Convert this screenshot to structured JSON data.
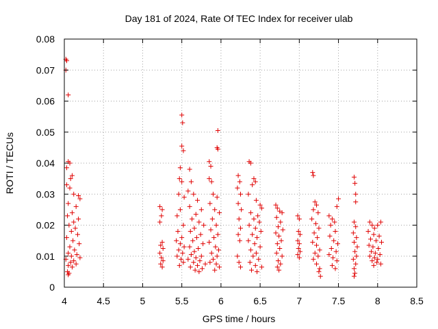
{
  "chart_data": {
    "type": "scatter",
    "title": "Day 181 of 2024, Rate Of TEC Index for receiver ulab",
    "xlabel": "GPS time / hours",
    "ylabel": "ROTI / TECUs",
    "xlim": [
      4,
      8.5
    ],
    "ylim": [
      0,
      0.08
    ],
    "x_ticks": [
      "4",
      "4.5",
      "5",
      "5.5",
      "6",
      "6.5",
      "7",
      "7.5",
      "8",
      "8.5"
    ],
    "y_ticks": [
      "0",
      "0.01",
      "0.02",
      "0.03",
      "0.04",
      "0.05",
      "0.06",
      "0.07",
      "0.08"
    ],
    "grid": true,
    "marker": "+",
    "color": "#e00000",
    "series": [
      {
        "name": "ROTI",
        "points": [
          [
            4.02,
            0.0735
          ],
          [
            4.03,
            0.073
          ],
          [
            4.02,
            0.07
          ],
          [
            4.05,
            0.062
          ],
          [
            4.05,
            0.0405
          ],
          [
            4.07,
            0.04
          ],
          [
            4.03,
            0.0385
          ],
          [
            4.1,
            0.036
          ],
          [
            4.08,
            0.035
          ],
          [
            4.03,
            0.033
          ],
          [
            4.07,
            0.032
          ],
          [
            4.12,
            0.03
          ],
          [
            4.18,
            0.0295
          ],
          [
            4.2,
            0.0285
          ],
          [
            4.05,
            0.027
          ],
          [
            4.15,
            0.026
          ],
          [
            4.1,
            0.024
          ],
          [
            4.04,
            0.023
          ],
          [
            4.18,
            0.022
          ],
          [
            4.12,
            0.021
          ],
          [
            4.06,
            0.02
          ],
          [
            4.14,
            0.019
          ],
          [
            4.09,
            0.018
          ],
          [
            4.17,
            0.017
          ],
          [
            4.03,
            0.016
          ],
          [
            4.11,
            0.015
          ],
          [
            4.19,
            0.014
          ],
          [
            4.07,
            0.013
          ],
          [
            4.13,
            0.012
          ],
          [
            4.05,
            0.011
          ],
          [
            4.16,
            0.0105
          ],
          [
            4.09,
            0.01
          ],
          [
            4.2,
            0.0095
          ],
          [
            4.02,
            0.009
          ],
          [
            4.12,
            0.0085
          ],
          [
            4.08,
            0.008
          ],
          [
            4.15,
            0.0075
          ],
          [
            4.05,
            0.007
          ],
          [
            4.1,
            0.0065
          ],
          [
            4.04,
            0.005
          ],
          [
            4.06,
            0.0045
          ],
          [
            4.05,
            0.004
          ],
          [
            5.22,
            0.026
          ],
          [
            5.25,
            0.025
          ],
          [
            5.24,
            0.023
          ],
          [
            5.22,
            0.021
          ],
          [
            5.25,
            0.0145
          ],
          [
            5.23,
            0.0135
          ],
          [
            5.26,
            0.0125
          ],
          [
            5.22,
            0.011
          ],
          [
            5.24,
            0.0095
          ],
          [
            5.26,
            0.0085
          ],
          [
            5.23,
            0.0075
          ],
          [
            5.25,
            0.0065
          ],
          [
            5.5,
            0.0555
          ],
          [
            5.51,
            0.053
          ],
          [
            5.5,
            0.0455
          ],
          [
            5.52,
            0.044
          ],
          [
            5.48,
            0.0385
          ],
          [
            5.47,
            0.035
          ],
          [
            5.5,
            0.034
          ],
          [
            5.46,
            0.03
          ],
          [
            5.53,
            0.029
          ],
          [
            5.48,
            0.025
          ],
          [
            5.44,
            0.023
          ],
          [
            5.52,
            0.02
          ],
          [
            5.45,
            0.018
          ],
          [
            5.5,
            0.016
          ],
          [
            5.43,
            0.015
          ],
          [
            5.48,
            0.014
          ],
          [
            5.53,
            0.013
          ],
          [
            5.46,
            0.012
          ],
          [
            5.51,
            0.011
          ],
          [
            5.44,
            0.01
          ],
          [
            5.49,
            0.009
          ],
          [
            5.52,
            0.008
          ],
          [
            5.47,
            0.007
          ],
          [
            5.6,
            0.038
          ],
          [
            5.62,
            0.034
          ],
          [
            5.58,
            0.031
          ],
          [
            5.65,
            0.03
          ],
          [
            5.7,
            0.028
          ],
          [
            5.6,
            0.026
          ],
          [
            5.75,
            0.025
          ],
          [
            5.68,
            0.0235
          ],
          [
            5.63,
            0.022
          ],
          [
            5.72,
            0.021
          ],
          [
            5.78,
            0.02
          ],
          [
            5.66,
            0.019
          ],
          [
            5.61,
            0.018
          ],
          [
            5.74,
            0.017
          ],
          [
            5.69,
            0.016
          ],
          [
            5.64,
            0.015
          ],
          [
            5.77,
            0.014
          ],
          [
            5.6,
            0.013
          ],
          [
            5.71,
            0.0125
          ],
          [
            5.66,
            0.0115
          ],
          [
            5.62,
            0.0105
          ],
          [
            5.75,
            0.01
          ],
          [
            5.68,
            0.0095
          ],
          [
            5.58,
            0.009
          ],
          [
            5.73,
            0.0085
          ],
          [
            5.65,
            0.008
          ],
          [
            5.8,
            0.0075
          ],
          [
            5.7,
            0.007
          ],
          [
            5.61,
            0.0065
          ],
          [
            5.76,
            0.006
          ],
          [
            5.67,
            0.0055
          ],
          [
            5.72,
            0.005
          ],
          [
            5.85,
            0.0405
          ],
          [
            5.87,
            0.039
          ],
          [
            5.85,
            0.035
          ],
          [
            5.88,
            0.034
          ],
          [
            5.9,
            0.03
          ],
          [
            5.95,
            0.029
          ],
          [
            5.86,
            0.027
          ],
          [
            5.92,
            0.025
          ],
          [
            5.98,
            0.024
          ],
          [
            5.89,
            0.022
          ],
          [
            5.94,
            0.02
          ],
          [
            5.87,
            0.0185
          ],
          [
            5.96,
            0.017
          ],
          [
            5.91,
            0.016
          ],
          [
            5.85,
            0.0145
          ],
          [
            5.93,
            0.013
          ],
          [
            5.97,
            0.012
          ],
          [
            5.88,
            0.011
          ],
          [
            5.95,
            0.01
          ],
          [
            5.9,
            0.009
          ],
          [
            5.86,
            0.008
          ],
          [
            5.94,
            0.0075
          ],
          [
            5.98,
            0.0065
          ],
          [
            5.92,
            0.0055
          ],
          [
            5.96,
            0.0505
          ],
          [
            5.95,
            0.045
          ],
          [
            5.96,
            0.0445
          ],
          [
            6.22,
            0.036
          ],
          [
            6.24,
            0.034
          ],
          [
            6.21,
            0.032
          ],
          [
            6.25,
            0.03
          ],
          [
            6.22,
            0.027
          ],
          [
            6.26,
            0.025
          ],
          [
            6.23,
            0.022
          ],
          [
            6.25,
            0.019
          ],
          [
            6.22,
            0.017
          ],
          [
            6.24,
            0.015
          ],
          [
            6.21,
            0.01
          ],
          [
            6.23,
            0.008
          ],
          [
            6.25,
            0.0065
          ],
          [
            6.36,
            0.0405
          ],
          [
            6.38,
            0.04
          ],
          [
            6.42,
            0.035
          ],
          [
            6.44,
            0.034
          ],
          [
            6.4,
            0.033
          ],
          [
            6.35,
            0.03
          ],
          [
            6.45,
            0.028
          ],
          [
            6.5,
            0.0265
          ],
          [
            6.52,
            0.0255
          ],
          [
            6.38,
            0.024
          ],
          [
            6.47,
            0.023
          ],
          [
            6.42,
            0.022
          ],
          [
            6.49,
            0.021
          ],
          [
            6.36,
            0.02
          ],
          [
            6.44,
            0.019
          ],
          [
            6.51,
            0.018
          ],
          [
            6.4,
            0.017
          ],
          [
            6.46,
            0.016
          ],
          [
            6.35,
            0.015
          ],
          [
            6.43,
            0.014
          ],
          [
            6.5,
            0.013
          ],
          [
            6.38,
            0.012
          ],
          [
            6.45,
            0.011
          ],
          [
            6.41,
            0.01
          ],
          [
            6.48,
            0.009
          ],
          [
            6.37,
            0.008
          ],
          [
            6.44,
            0.007
          ],
          [
            6.52,
            0.0065
          ],
          [
            6.39,
            0.0055
          ],
          [
            6.46,
            0.005
          ],
          [
            6.7,
            0.0265
          ],
          [
            6.72,
            0.0255
          ],
          [
            6.75,
            0.0245
          ],
          [
            6.78,
            0.024
          ],
          [
            6.71,
            0.0225
          ],
          [
            6.76,
            0.021
          ],
          [
            6.73,
            0.0195
          ],
          [
            6.79,
            0.0185
          ],
          [
            6.7,
            0.0175
          ],
          [
            6.74,
            0.0165
          ],
          [
            6.77,
            0.015
          ],
          [
            6.72,
            0.014
          ],
          [
            6.75,
            0.0125
          ],
          [
            6.71,
            0.011
          ],
          [
            6.78,
            0.01
          ],
          [
            6.73,
            0.0085
          ],
          [
            6.76,
            0.0075
          ],
          [
            6.72,
            0.0065
          ],
          [
            6.74,
            0.0055
          ],
          [
            6.98,
            0.023
          ],
          [
            7.0,
            0.022
          ],
          [
            6.99,
            0.018
          ],
          [
            7.01,
            0.017
          ],
          [
            6.98,
            0.015
          ],
          [
            7.0,
            0.014
          ],
          [
            6.99,
            0.0125
          ],
          [
            7.01,
            0.0115
          ],
          [
            6.98,
            0.0105
          ],
          [
            7.0,
            0.0095
          ],
          [
            7.17,
            0.037
          ],
          [
            7.18,
            0.036
          ],
          [
            7.2,
            0.0275
          ],
          [
            7.22,
            0.0265
          ],
          [
            7.18,
            0.025
          ],
          [
            7.24,
            0.024
          ],
          [
            7.16,
            0.022
          ],
          [
            7.21,
            0.0205
          ],
          [
            7.25,
            0.019
          ],
          [
            7.19,
            0.0175
          ],
          [
            7.23,
            0.016
          ],
          [
            7.17,
            0.0145
          ],
          [
            7.22,
            0.0135
          ],
          [
            7.26,
            0.012
          ],
          [
            7.2,
            0.011
          ],
          [
            7.24,
            0.01
          ],
          [
            7.18,
            0.009
          ],
          [
            7.22,
            0.0075
          ],
          [
            7.26,
            0.006
          ],
          [
            7.25,
            0.005
          ],
          [
            7.27,
            0.0035
          ],
          [
            7.38,
            0.023
          ],
          [
            7.42,
            0.022
          ],
          [
            7.45,
            0.021
          ],
          [
            7.5,
            0.0285
          ],
          [
            7.48,
            0.026
          ],
          [
            7.4,
            0.02
          ],
          [
            7.46,
            0.018
          ],
          [
            7.39,
            0.0165
          ],
          [
            7.44,
            0.015
          ],
          [
            7.49,
            0.014
          ],
          [
            7.41,
            0.0125
          ],
          [
            7.47,
            0.0115
          ],
          [
            7.38,
            0.0105
          ],
          [
            7.43,
            0.0095
          ],
          [
            7.48,
            0.0085
          ],
          [
            7.42,
            0.007
          ],
          [
            7.46,
            0.006
          ],
          [
            7.7,
            0.0355
          ],
          [
            7.71,
            0.0335
          ],
          [
            7.72,
            0.03
          ],
          [
            7.72,
            0.0275
          ],
          [
            7.7,
            0.021
          ],
          [
            7.72,
            0.0195
          ],
          [
            7.69,
            0.0175
          ],
          [
            7.73,
            0.016
          ],
          [
            7.7,
            0.0145
          ],
          [
            7.74,
            0.013
          ],
          [
            7.71,
            0.0115
          ],
          [
            7.73,
            0.01
          ],
          [
            7.69,
            0.009
          ],
          [
            7.72,
            0.0075
          ],
          [
            7.7,
            0.006
          ],
          [
            7.71,
            0.0045
          ],
          [
            7.7,
            0.0035
          ],
          [
            7.9,
            0.021
          ],
          [
            7.93,
            0.02
          ],
          [
            7.96,
            0.019
          ],
          [
            8.0,
            0.02
          ],
          [
            8.04,
            0.021
          ],
          [
            7.88,
            0.018
          ],
          [
            7.95,
            0.017
          ],
          [
            8.02,
            0.0165
          ],
          [
            7.91,
            0.0155
          ],
          [
            7.98,
            0.015
          ],
          [
            8.05,
            0.0145
          ],
          [
            7.89,
            0.0135
          ],
          [
            7.94,
            0.013
          ],
          [
            8.01,
            0.0125
          ],
          [
            7.92,
            0.0115
          ],
          [
            7.97,
            0.011
          ],
          [
            8.03,
            0.0105
          ],
          [
            7.9,
            0.01
          ],
          [
            7.96,
            0.0095
          ],
          [
            8.0,
            0.009
          ],
          [
            7.93,
            0.0085
          ],
          [
            7.99,
            0.008
          ],
          [
            8.04,
            0.0075
          ],
          [
            7.95,
            0.007
          ]
        ]
      }
    ]
  }
}
